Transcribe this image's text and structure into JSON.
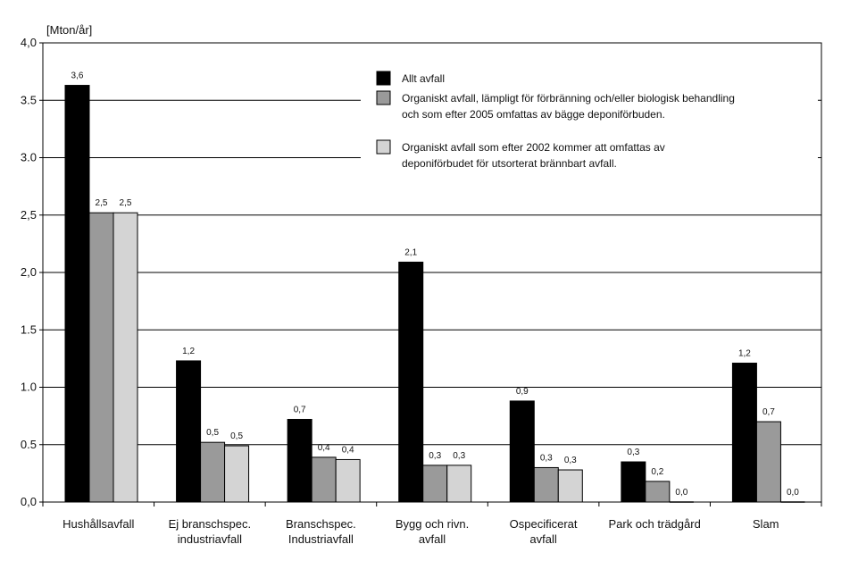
{
  "chart_data": {
    "type": "bar",
    "ylabel": "[Mton/år]",
    "ylim": [
      0,
      4.0
    ],
    "yticks": [
      "0,0",
      "0.5",
      "1.0",
      "1.5",
      "2,0",
      "2,5",
      "3.0",
      "3.5",
      "4,0"
    ],
    "grid": true,
    "legend_position": "top-right",
    "categories": [
      [
        "Hushållsavfall"
      ],
      [
        "Ej branschspec.",
        "industriavfall"
      ],
      [
        "Branschspec.",
        "Industriavfall"
      ],
      [
        "Bygg och rivn.",
        "avfall"
      ],
      [
        "Ospecificerat",
        "avfall"
      ],
      [
        "Park och trädgård"
      ],
      [
        "Slam"
      ]
    ],
    "series": [
      {
        "name": "Allt avfall",
        "legend_lines": [
          "Allt avfall"
        ],
        "color": "#000000",
        "values": [
          3.63,
          1.23,
          0.72,
          2.09,
          0.88,
          0.35,
          1.21
        ],
        "labels": [
          "3,6",
          "1,2",
          "0,7",
          "2,1",
          "0,9",
          "0,3",
          "1,2"
        ]
      },
      {
        "name": "Organiskt avfall, lämpligt för förbränning och/eller biologisk behandling och som efter 2005 omfattas av bägge deponiförbuden.",
        "legend_lines": [
          "Organiskt avfall, lämpligt för förbränning och/eller biologisk behandling",
          "och som efter 2005 omfattas av bägge deponiförbuden."
        ],
        "color": "#9a9a9a",
        "values": [
          2.52,
          0.52,
          0.39,
          0.32,
          0.3,
          0.18,
          0.7
        ],
        "labels": [
          "2,5",
          "0,5",
          "0,4",
          "0,3",
          "0,3",
          "0,2",
          "0,7"
        ]
      },
      {
        "name": "Organiskt avfall som efter 2002 kommer att omfattas av deponiförbudet för utsorterat brännbart avfall.",
        "legend_lines": [
          "Organiskt avfall som efter 2002 kommer att omfattas av",
          "deponiförbudet för utsorterat brännbart avfall."
        ],
        "color": "#d4d4d4",
        "values": [
          2.52,
          0.49,
          0.37,
          0.32,
          0.28,
          0.0,
          0.0
        ],
        "labels": [
          "2,5",
          "0,5",
          "0,4",
          "0,3",
          "0,3",
          "0,0",
          "0,0"
        ]
      }
    ]
  }
}
